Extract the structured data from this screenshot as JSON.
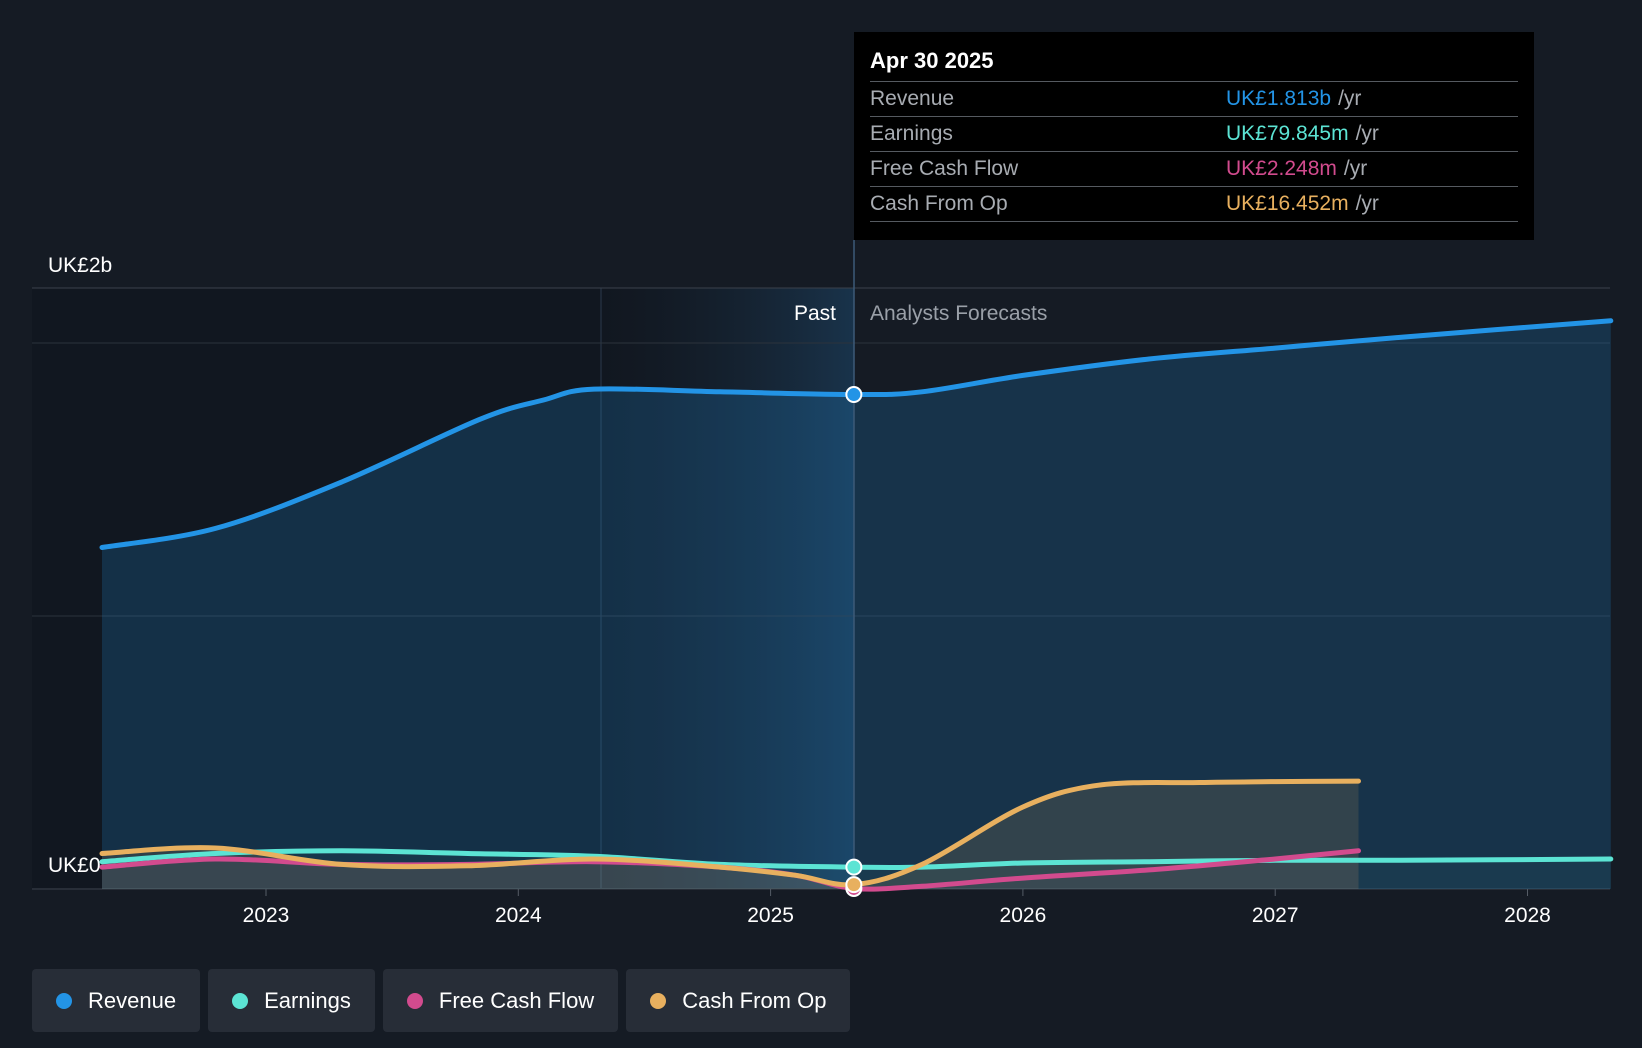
{
  "chart_data": {
    "type": "area",
    "y_axis": {
      "top_label": "UK£2b",
      "bottom_label": "UK£0",
      "ylim": [
        0,
        2.2
      ]
    },
    "x_axis": {
      "ticks": [
        "2023",
        "2024",
        "2025",
        "2026",
        "2027",
        "2028"
      ]
    },
    "past_label": "Past",
    "forecast_label": "Analysts Forecasts",
    "divider_date": 2025.33,
    "series": [
      {
        "name": "Revenue",
        "color": "#2394e6",
        "points": [
          [
            2022.35,
            1.25
          ],
          [
            2022.8,
            1.32
          ],
          [
            2023.3,
            1.49
          ],
          [
            2023.85,
            1.72
          ],
          [
            2024.1,
            1.79
          ],
          [
            2024.3,
            1.83
          ],
          [
            2024.8,
            1.82
          ],
          [
            2025.33,
            1.81
          ],
          [
            2025.6,
            1.82
          ],
          [
            2026.0,
            1.88
          ],
          [
            2026.5,
            1.94
          ],
          [
            2027.0,
            1.98
          ],
          [
            2027.5,
            2.02
          ],
          [
            2028.33,
            2.08
          ]
        ]
      },
      {
        "name": "Earnings",
        "color": "#5ce4d4",
        "points": [
          [
            2022.35,
            0.1
          ],
          [
            2022.8,
            0.13
          ],
          [
            2023.3,
            0.14
          ],
          [
            2023.8,
            0.13
          ],
          [
            2024.3,
            0.12
          ],
          [
            2024.8,
            0.09
          ],
          [
            2025.33,
            0.08
          ],
          [
            2025.6,
            0.08
          ],
          [
            2026.0,
            0.095
          ],
          [
            2026.5,
            0.1
          ],
          [
            2027.0,
            0.105
          ],
          [
            2027.5,
            0.105
          ],
          [
            2028.33,
            0.11
          ]
        ]
      },
      {
        "name": "Free Cash Flow",
        "color": "#d24b8e",
        "points": [
          [
            2022.35,
            0.08
          ],
          [
            2022.8,
            0.11
          ],
          [
            2023.3,
            0.09
          ],
          [
            2023.8,
            0.09
          ],
          [
            2024.3,
            0.1
          ],
          [
            2024.8,
            0.08
          ],
          [
            2025.1,
            0.05
          ],
          [
            2025.33,
            0.002
          ],
          [
            2025.6,
            0.01
          ],
          [
            2026.0,
            0.04
          ],
          [
            2026.5,
            0.07
          ],
          [
            2027.0,
            0.11
          ],
          [
            2027.33,
            0.14
          ]
        ]
      },
      {
        "name": "Cash From Op",
        "color": "#e8b05f",
        "points": [
          [
            2022.35,
            0.13
          ],
          [
            2022.8,
            0.15
          ],
          [
            2023.3,
            0.09
          ],
          [
            2023.8,
            0.085
          ],
          [
            2024.3,
            0.11
          ],
          [
            2024.8,
            0.08
          ],
          [
            2025.1,
            0.05
          ],
          [
            2025.33,
            0.016
          ],
          [
            2025.6,
            0.09
          ],
          [
            2026.0,
            0.3
          ],
          [
            2026.3,
            0.38
          ],
          [
            2026.7,
            0.39
          ],
          [
            2027.0,
            0.393
          ],
          [
            2027.33,
            0.395
          ]
        ]
      }
    ]
  },
  "tooltip": {
    "date": "Apr 30 2025",
    "rows": [
      {
        "name": "Revenue",
        "value": "UK£1.813b",
        "unit": "/yr",
        "color": "#2394e6"
      },
      {
        "name": "Earnings",
        "value": "UK£79.845m",
        "unit": "/yr",
        "color": "#5ce4d4"
      },
      {
        "name": "Free Cash Flow",
        "value": "UK£2.248m",
        "unit": "/yr",
        "color": "#d24b8e"
      },
      {
        "name": "Cash From Op",
        "value": "UK£16.452m",
        "unit": "/yr",
        "color": "#e8b05f"
      }
    ]
  },
  "legend": [
    {
      "label": "Revenue",
      "color": "#2394e6"
    },
    {
      "label": "Earnings",
      "color": "#5ce4d4"
    },
    {
      "label": "Free Cash Flow",
      "color": "#d24b8e"
    },
    {
      "label": "Cash From Op",
      "color": "#e8b05f"
    }
  ]
}
